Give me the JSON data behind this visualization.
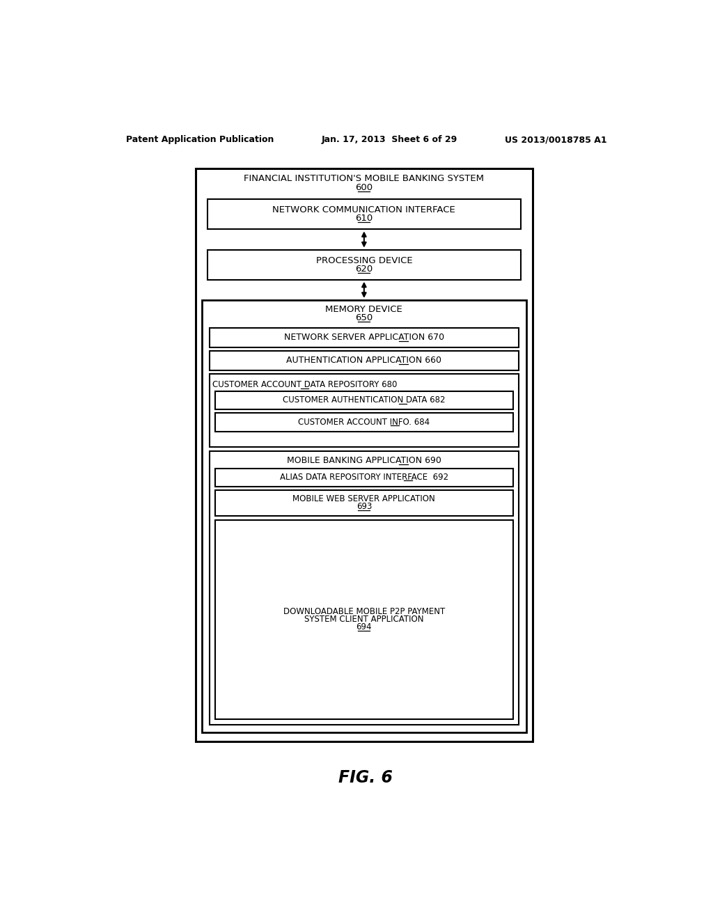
{
  "bg_color": "#ffffff",
  "header_left": "Patent Application Publication",
  "header_mid": "Jan. 17, 2013  Sheet 6 of 29",
  "header_right": "US 2013/0018785 A1",
  "figure_label": "FIG. 6"
}
